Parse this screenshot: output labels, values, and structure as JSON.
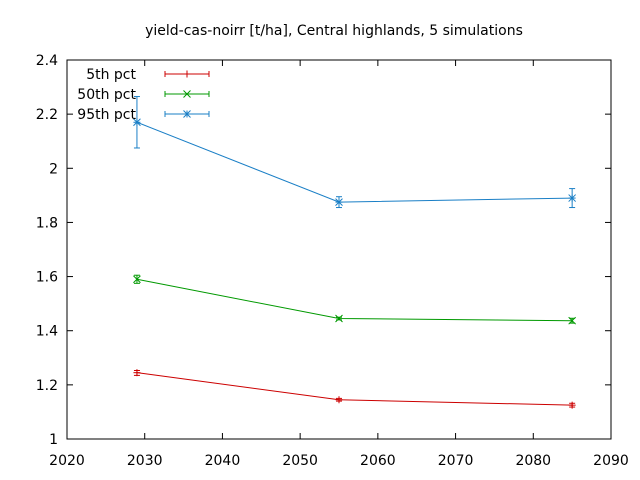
{
  "chart_data": {
    "type": "line",
    "title": "yield-cas-noirr [t/ha], Central highlands, 5 simulations",
    "xlabel": "",
    "ylabel": "",
    "xlim": [
      2020,
      2090
    ],
    "ylim": [
      1,
      2.4
    ],
    "x_ticks": [
      2020,
      2030,
      2040,
      2050,
      2060,
      2070,
      2080,
      2090
    ],
    "y_ticks": [
      1,
      1.2,
      1.4,
      1.6,
      1.8,
      2,
      2.2,
      2.4
    ],
    "y_tick_labels": [
      "1",
      "1.2",
      "1.4",
      "1.6",
      "1.8",
      "2",
      "2.2",
      "2.4"
    ],
    "grid": false,
    "legend_position": "top-left",
    "x": [
      2029,
      2055,
      2085
    ],
    "series": [
      {
        "name": "5th pct",
        "color": "#cc0000",
        "marker": "plus",
        "values": [
          1.245,
          1.145,
          1.125
        ],
        "err_low": [
          1.235,
          1.14,
          1.118
        ],
        "err_high": [
          1.253,
          1.15,
          1.132
        ]
      },
      {
        "name": "50th pct",
        "color": "#009900",
        "marker": "cross",
        "values": [
          1.59,
          1.445,
          1.437
        ],
        "err_low": [
          1.575,
          1.44,
          1.428
        ],
        "err_high": [
          1.605,
          1.45,
          1.446
        ]
      },
      {
        "name": "95th pct",
        "color": "#1a7fc6",
        "marker": "star",
        "values": [
          2.17,
          1.875,
          1.89
        ],
        "err_low": [
          2.075,
          1.855,
          1.855
        ],
        "err_high": [
          2.265,
          1.895,
          1.925
        ]
      }
    ]
  }
}
